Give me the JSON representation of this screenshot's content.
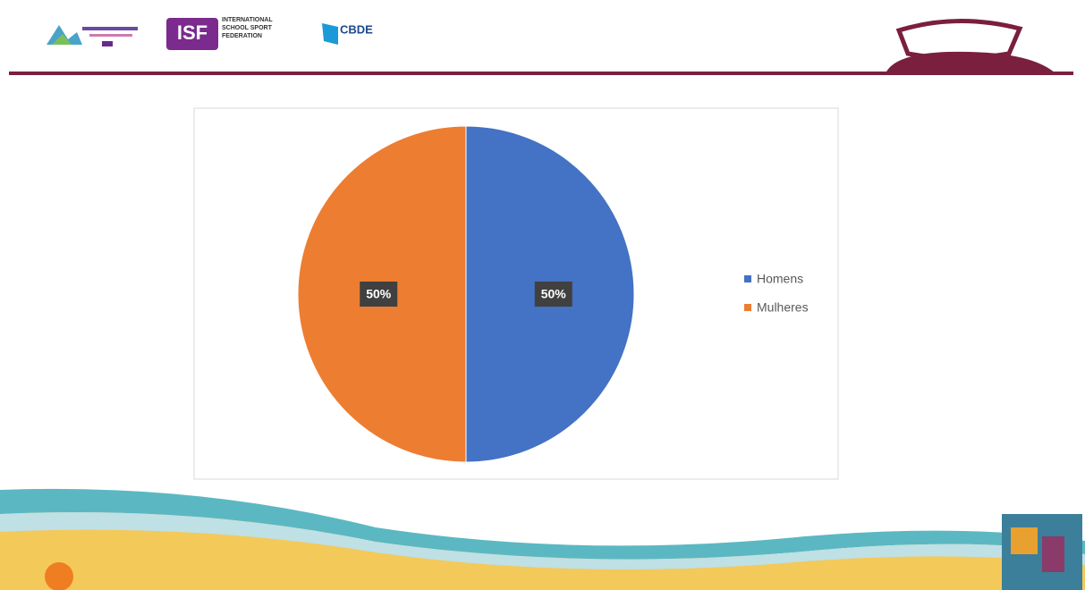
{
  "header": {
    "logo_isf": "ISF",
    "isf_name": "INTERNATIONAL SCHOOL SPORT FEDERATION",
    "logo_cbde": "CBDE"
  },
  "chart_data": {
    "type": "pie",
    "categories": [
      "Homens",
      "Mulheres"
    ],
    "values": [
      50,
      50
    ],
    "value_labels": [
      "50%",
      "50%"
    ],
    "colors": [
      "#4472c4",
      "#ed7d31"
    ],
    "legend": "right"
  }
}
